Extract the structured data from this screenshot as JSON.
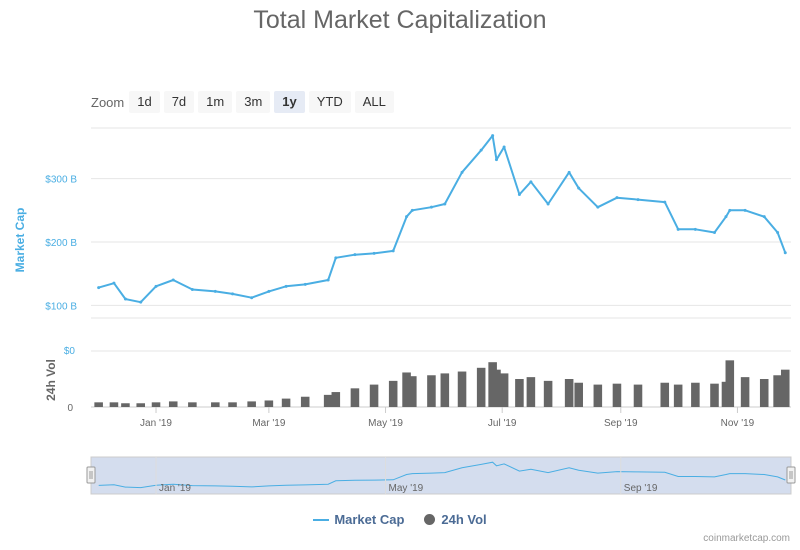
{
  "chart_data": {
    "type": "line",
    "title": "Total Market Capitalization",
    "zoom": {
      "label": "Zoom",
      "buttons": [
        "1d",
        "7d",
        "1m",
        "3m",
        "1y",
        "YTD",
        "ALL"
      ],
      "selected": "1y"
    },
    "x": [
      "2018-12-02",
      "2018-12-10",
      "2018-12-16",
      "2018-12-24",
      "2019-01-01",
      "2019-01-10",
      "2019-01-20",
      "2019-02-01",
      "2019-02-10",
      "2019-02-20",
      "2019-03-01",
      "2019-03-10",
      "2019-03-20",
      "2019-04-01",
      "2019-04-05",
      "2019-04-15",
      "2019-04-25",
      "2019-05-05",
      "2019-05-12",
      "2019-05-15",
      "2019-05-25",
      "2019-06-01",
      "2019-06-10",
      "2019-06-20",
      "2019-06-26",
      "2019-06-28",
      "2019-07-02",
      "2019-07-10",
      "2019-07-16",
      "2019-07-25",
      "2019-08-05",
      "2019-08-10",
      "2019-08-20",
      "2019-08-30",
      "2019-09-10",
      "2019-09-24",
      "2019-10-01",
      "2019-10-10",
      "2019-10-20",
      "2019-10-26",
      "2019-10-28",
      "2019-11-05",
      "2019-11-15",
      "2019-11-22",
      "2019-11-26"
    ],
    "series": [
      {
        "name": "Market Cap",
        "values": [
          128,
          135,
          110,
          105,
          130,
          140,
          125,
          122,
          118,
          112,
          122,
          130,
          133,
          140,
          175,
          180,
          182,
          186,
          240,
          250,
          255,
          260,
          310,
          345,
          368,
          330,
          350,
          275,
          295,
          260,
          310,
          285,
          255,
          270,
          267,
          263,
          220,
          220,
          215,
          240,
          250,
          250,
          240,
          215,
          183
        ]
      },
      {
        "name": "24h Vol",
        "values": [
          5,
          5,
          4,
          4,
          5,
          6,
          5,
          5,
          5,
          6,
          7,
          9,
          11,
          13,
          16,
          20,
          24,
          28,
          37,
          33,
          34,
          36,
          38,
          42,
          48,
          40,
          36,
          30,
          32,
          28,
          30,
          26,
          24,
          25,
          24,
          26,
          24,
          26,
          25,
          27,
          50,
          32,
          30,
          34,
          40
        ]
      }
    ],
    "x_ticks": [
      "Jan '19",
      "Mar '19",
      "May '19",
      "Jul '19",
      "Sep '19",
      "Nov '19"
    ],
    "y_ticks_cap": [
      "$100 B",
      "$200 B",
      "$300 B"
    ],
    "y_ticks_vol": [
      "0",
      "$0"
    ],
    "ylabel_cap": "Market Cap",
    "ylabel_vol": "24h Vol",
    "navigator_ticks": [
      "Jan '19",
      "May '19",
      "Sep '19"
    ],
    "colors": {
      "cap": "#4aaee3",
      "vol": "#666666"
    },
    "ylim_cap": [
      80,
      380
    ],
    "grid": true,
    "legend_position": "bottom-center"
  },
  "legend": {
    "cap_label": "Market Cap",
    "vol_label": "24h Vol"
  },
  "credits": "coinmarketcap.com"
}
